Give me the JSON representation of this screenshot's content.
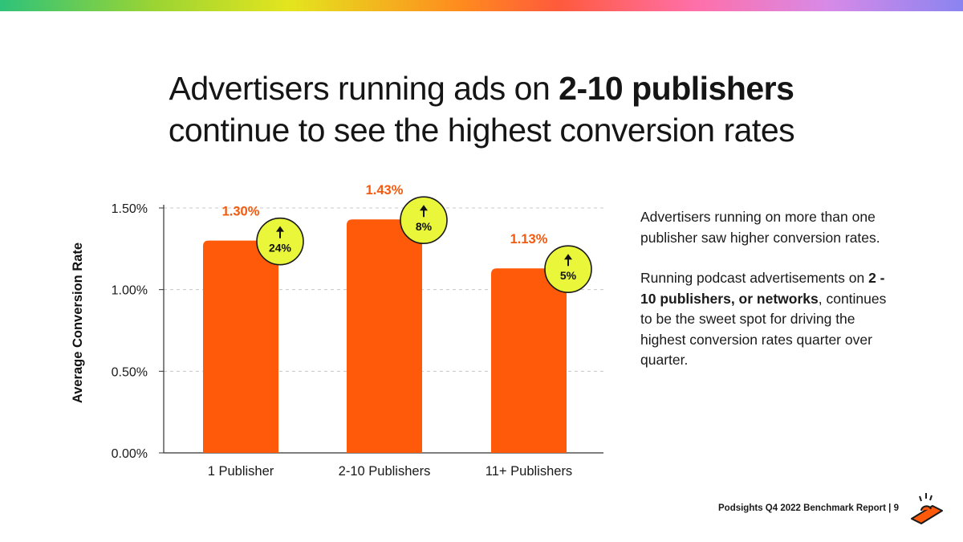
{
  "header": {
    "title_line1_pre": "Advertisers running ads on ",
    "title_line1_bold": "2-10 publishers",
    "title_line2": "continue to see the highest conversion rates"
  },
  "chart_data": {
    "type": "bar",
    "ylabel": "Average Conversion Rate",
    "xlabel": "",
    "ylim": [
      0,
      1.5
    ],
    "yticks": [
      "0.00%",
      "0.50%",
      "1.00%",
      "1.50%"
    ],
    "ytick_values": [
      0,
      0.5,
      1.0,
      1.5
    ],
    "grid": true,
    "categories": [
      "1 Publisher",
      "2-10 Publishers",
      "11+ Publishers"
    ],
    "values": [
      1.3,
      1.43,
      1.13
    ],
    "value_labels": [
      "1.30%",
      "1.43%",
      "1.13%"
    ],
    "change_badges": [
      "24%",
      "8%",
      "5%"
    ],
    "change_direction": "up",
    "bar_color": "#ff5a0a",
    "badge_color": "#e9f63a"
  },
  "side": {
    "para1": "Advertisers running on more than one publisher saw higher conversion rates.",
    "para2_pre": "Running podcast advertisements on ",
    "para2_bold": "2 - 10 publishers, or networks",
    "para2_post": ", continues to be the sweet spot for driving the highest conversion rates quarter over quarter."
  },
  "footer": {
    "text": "Podsights Q4 2022 Benchmark Report | 9"
  },
  "colors": {
    "accent": "#ff5a0a",
    "label_orange": "#f25a0f",
    "badge": "#e9f63a",
    "text": "#111111"
  }
}
